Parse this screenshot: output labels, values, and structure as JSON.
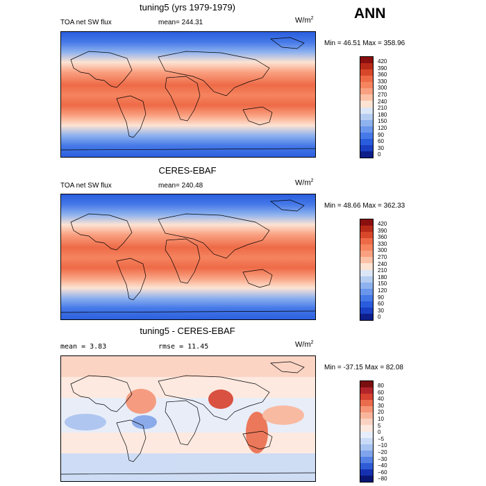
{
  "season": "ANN",
  "panels": [
    {
      "title": "tuning5 (yrs 1979-1979)",
      "field_label": "TOA net SW flux",
      "stat_text": "mean= 244.31",
      "minmax": "Min =  46.51 Max = 358.96"
    },
    {
      "title": "CERES-EBAF",
      "field_label": "TOA net SW flux",
      "stat_text": "mean= 240.48",
      "minmax": "Min =  48.66 Max = 362.33"
    },
    {
      "title": "tuning5 - CERES-EBAF",
      "field_label": "mean =   3.83",
      "stat_text": "rmse =  11.45",
      "minmax": "Min = -37.15 Max =  82.08"
    }
  ],
  "units": {
    "base": "W/m",
    "exp": "2"
  },
  "chart_data": [
    {
      "type": "heatmap",
      "title": "tuning5 (yrs 1979-1979)",
      "variable": "TOA net SW flux",
      "mean": 244.31,
      "min": 46.51,
      "max": 358.96,
      "colorbar_levels": [
        "420",
        "390",
        "360",
        "330",
        "300",
        "270",
        "240",
        "210",
        "180",
        "150",
        "120",
        "90",
        "60",
        "30",
        "0"
      ],
      "colorbar_colors": [
        "#8a0f0f",
        "#b82a18",
        "#d8472a",
        "#ee6a47",
        "#f5845f",
        "#f9a080",
        "#fbc2a7",
        "#fde3d3",
        "#dbe6f6",
        "#b5cdf1",
        "#8eb2ee",
        "#6a96ec",
        "#4679e8",
        "#2a5ddd",
        "#1a3fc2",
        "#0e1f8a"
      ]
    },
    {
      "type": "heatmap",
      "title": "CERES-EBAF",
      "variable": "TOA net SW flux",
      "mean": 240.48,
      "min": 48.66,
      "max": 362.33,
      "colorbar_levels": [
        "420",
        "390",
        "360",
        "330",
        "300",
        "270",
        "240",
        "210",
        "180",
        "150",
        "120",
        "90",
        "60",
        "30",
        "0"
      ],
      "colorbar_colors": [
        "#8a0f0f",
        "#b82a18",
        "#d8472a",
        "#ee6a47",
        "#f5845f",
        "#f9a080",
        "#fbc2a7",
        "#fde3d3",
        "#dbe6f6",
        "#b5cdf1",
        "#8eb2ee",
        "#6a96ec",
        "#4679e8",
        "#2a5ddd",
        "#1a3fc2",
        "#0e1f8a"
      ]
    },
    {
      "type": "heatmap",
      "title": "tuning5 - CERES-EBAF",
      "mean": 3.83,
      "rmse": 11.45,
      "min": -37.15,
      "max": 82.08,
      "colorbar_levels": [
        "80",
        "60",
        "40",
        "30",
        "20",
        "10",
        "5",
        "0",
        "−5",
        "−10",
        "−20",
        "−30",
        "−40",
        "−60",
        "−80"
      ],
      "colorbar_colors": [
        "#7a0f10",
        "#b3242a",
        "#d64130",
        "#ea6c4c",
        "#f59476",
        "#f9b59c",
        "#fbd2c2",
        "#fde9e0",
        "#e6eefb",
        "#c9dbf7",
        "#a7c3f2",
        "#7fa4ec",
        "#5580e4",
        "#2f5bd6",
        "#1631b0",
        "#0a1673"
      ]
    }
  ],
  "colors": {
    "land_outline": "#000000",
    "background": "#ffffff"
  }
}
